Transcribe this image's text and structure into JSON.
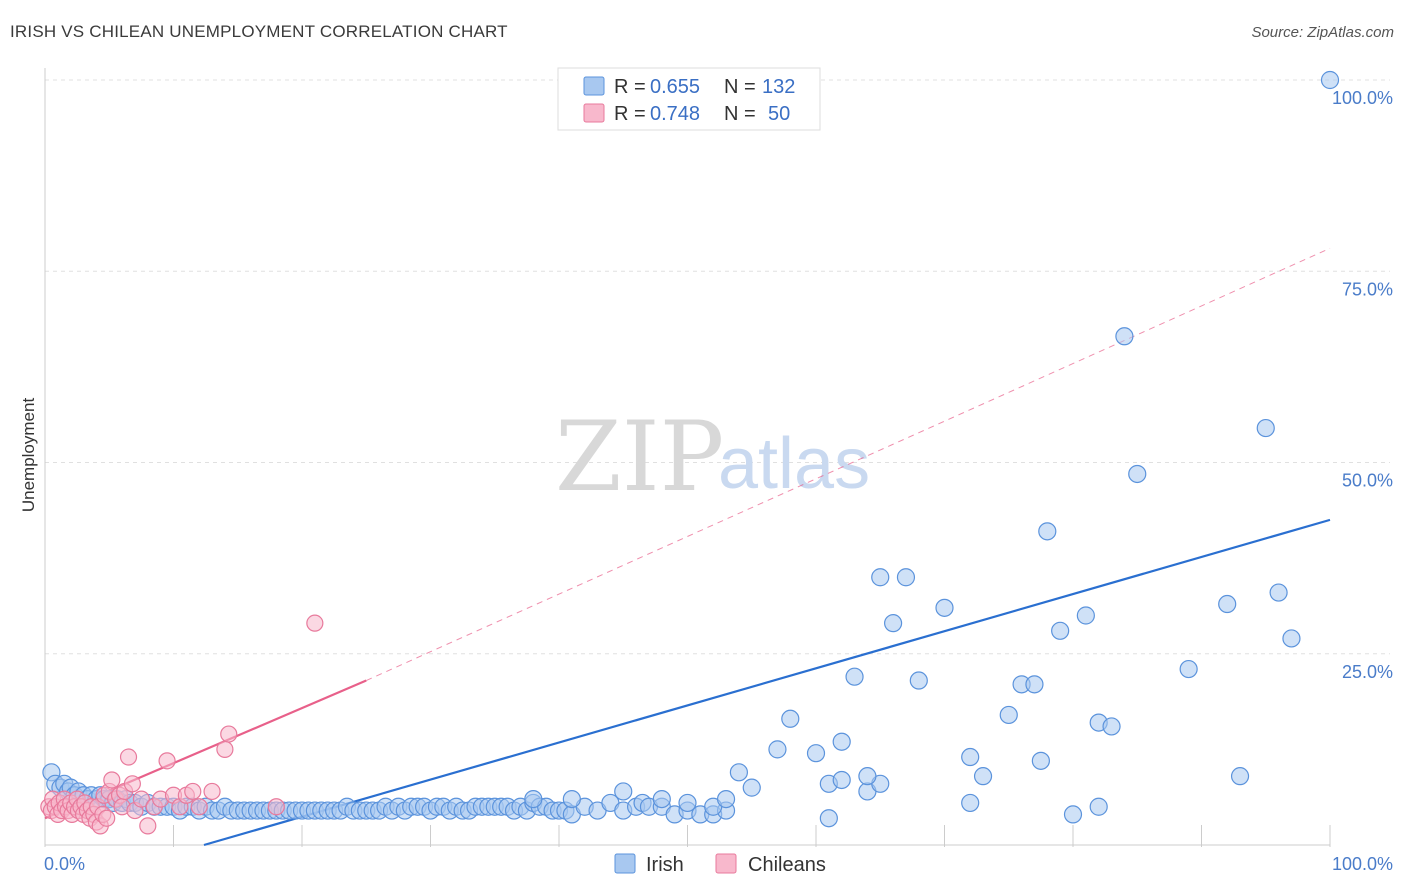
{
  "title": "IRISH VS CHILEAN UNEMPLOYMENT CORRELATION CHART",
  "source": "Source: ZipAtlas.com",
  "watermark": {
    "zip": "ZIP",
    "atlas": "atlas"
  },
  "colors": {
    "irish_fill": "#a8c8f0",
    "irish_stroke": "#5b93dc",
    "irish_line": "#2a6fd0",
    "chilean_fill": "#f8b8cc",
    "chilean_stroke": "#e87a9c",
    "chilean_line": "#e8608a",
    "grid": "#e0e0e0",
    "axis_text": "#4a7cc9"
  },
  "legend": {
    "rows": [
      {
        "r_label": "R =",
        "r_value": "0.655",
        "n_label": "N =",
        "n_value": "132"
      },
      {
        "r_label": "R =",
        "r_value": "0.748",
        "n_label": "N =",
        "n_value": "50"
      }
    ]
  },
  "bottom_legend": {
    "irish": "Irish",
    "chileans": "Chileans"
  },
  "chart_data": {
    "type": "scatter",
    "title": "IRISH VS CHILEAN UNEMPLOYMENT CORRELATION CHART",
    "xlabel": "",
    "ylabel": "Unemployment",
    "xlim": [
      0,
      100
    ],
    "ylim": [
      0,
      100
    ],
    "x_tick_labels": [
      "0.0%",
      "100.0%"
    ],
    "y_tick_labels": [
      "100.0%",
      "75.0%",
      "50.0%",
      "25.0%"
    ],
    "y_ticks": [
      100,
      75,
      50,
      25
    ],
    "series": [
      {
        "name": "Irish",
        "r": 0.655,
        "n": 132,
        "trend": {
          "x": [
            0,
            100
          ],
          "y": [
            -6.0,
            42.5
          ],
          "dashed": false
        },
        "points": [
          [
            0.5,
            9.5
          ],
          [
            0.8,
            8
          ],
          [
            1.2,
            7.5
          ],
          [
            1.5,
            8
          ],
          [
            1.8,
            7
          ],
          [
            2,
            7.5
          ],
          [
            2.3,
            6.5
          ],
          [
            2.6,
            7
          ],
          [
            3,
            6.5
          ],
          [
            3.3,
            6
          ],
          [
            3.6,
            6.5
          ],
          [
            4,
            6
          ],
          [
            4.3,
            6.5
          ],
          [
            4.6,
            6
          ],
          [
            5,
            6
          ],
          [
            5.3,
            5.5
          ],
          [
            5.6,
            6
          ],
          [
            6,
            5.5
          ],
          [
            6.3,
            6
          ],
          [
            6.6,
            5.5
          ],
          [
            7,
            5.5
          ],
          [
            7.5,
            5
          ],
          [
            8,
            5.5
          ],
          [
            8.5,
            5
          ],
          [
            9,
            5
          ],
          [
            9.5,
            5
          ],
          [
            10,
            5
          ],
          [
            10.5,
            4.5
          ],
          [
            11,
            5
          ],
          [
            11.5,
            5
          ],
          [
            12,
            4.5
          ],
          [
            12.5,
            5
          ],
          [
            13,
            4.5
          ],
          [
            13.5,
            4.5
          ],
          [
            14,
            5
          ],
          [
            14.5,
            4.5
          ],
          [
            15,
            4.5
          ],
          [
            15.5,
            4.5
          ],
          [
            16,
            4.5
          ],
          [
            16.5,
            4.5
          ],
          [
            17,
            4.5
          ],
          [
            17.5,
            4.5
          ],
          [
            18,
            4.5
          ],
          [
            18.5,
            4.5
          ],
          [
            19,
            4.5
          ],
          [
            19.5,
            4.5
          ],
          [
            20,
            4.5
          ],
          [
            20.5,
            4.5
          ],
          [
            21,
            4.5
          ],
          [
            21.5,
            4.5
          ],
          [
            22,
            4.5
          ],
          [
            22.5,
            4.5
          ],
          [
            23,
            4.5
          ],
          [
            23.5,
            5
          ],
          [
            24,
            4.5
          ],
          [
            24.5,
            4.5
          ],
          [
            25,
            4.5
          ],
          [
            25.5,
            4.5
          ],
          [
            26,
            4.5
          ],
          [
            26.5,
            5
          ],
          [
            27,
            4.5
          ],
          [
            27.5,
            5
          ],
          [
            28,
            4.5
          ],
          [
            28.5,
            5
          ],
          [
            29,
            5
          ],
          [
            29.5,
            5
          ],
          [
            30,
            4.5
          ],
          [
            30.5,
            5
          ],
          [
            31,
            5
          ],
          [
            31.5,
            4.5
          ],
          [
            32,
            5
          ],
          [
            32.5,
            4.5
          ],
          [
            33,
            4.5
          ],
          [
            33.5,
            5
          ],
          [
            34,
            5
          ],
          [
            34.5,
            5
          ],
          [
            35,
            5
          ],
          [
            35.5,
            5
          ],
          [
            36,
            5
          ],
          [
            36.5,
            4.5
          ],
          [
            37,
            5
          ],
          [
            37.5,
            4.5
          ],
          [
            38,
            5.5
          ],
          [
            38.5,
            5
          ],
          [
            39,
            5
          ],
          [
            39.5,
            4.5
          ],
          [
            40,
            4.5
          ],
          [
            40.5,
            4.5
          ],
          [
            41,
            4
          ],
          [
            42,
            5
          ],
          [
            43,
            4.5
          ],
          [
            44,
            5.5
          ],
          [
            45,
            4.5
          ],
          [
            46,
            5
          ],
          [
            46.5,
            5.5
          ],
          [
            47,
            5
          ],
          [
            48,
            5
          ],
          [
            49,
            4
          ],
          [
            50,
            4.5
          ],
          [
            51,
            4
          ],
          [
            52,
            4
          ],
          [
            53,
            4.5
          ],
          [
            38,
            6
          ],
          [
            41,
            6
          ],
          [
            48,
            6
          ],
          [
            50,
            5.5
          ],
          [
            52,
            5
          ],
          [
            53,
            6
          ],
          [
            45,
            7
          ],
          [
            55,
            7.5
          ],
          [
            54,
            9.5
          ],
          [
            57,
            12.5
          ],
          [
            58,
            16.5
          ],
          [
            60,
            12
          ],
          [
            61,
            8
          ],
          [
            62,
            13.5
          ],
          [
            63,
            22
          ],
          [
            64,
            7
          ],
          [
            65,
            8
          ],
          [
            64,
            9
          ],
          [
            65,
            35
          ],
          [
            66,
            29
          ],
          [
            67,
            35
          ],
          [
            68,
            21.5
          ],
          [
            70,
            31
          ],
          [
            72,
            5.5
          ],
          [
            72,
            11.5
          ],
          [
            73,
            9
          ],
          [
            75,
            17
          ],
          [
            76,
            21
          ],
          [
            77,
            21
          ],
          [
            77.5,
            11
          ],
          [
            78,
            41
          ],
          [
            79,
            28
          ],
          [
            80,
            4
          ],
          [
            81,
            30
          ],
          [
            82,
            5
          ],
          [
            82,
            16
          ],
          [
            83,
            15.5
          ],
          [
            84,
            66.5
          ],
          [
            85,
            48.5
          ],
          [
            89,
            23
          ],
          [
            92,
            31.5
          ],
          [
            93,
            9
          ],
          [
            95,
            54.5
          ],
          [
            96,
            33
          ],
          [
            97,
            27
          ],
          [
            100,
            100
          ],
          [
            61,
            3.5
          ],
          [
            62,
            8.5
          ]
        ]
      },
      {
        "name": "Chileans",
        "r": 0.748,
        "n": 50,
        "trend": {
          "x": [
            0,
            25
          ],
          "y": [
            3.5,
            21.5
          ],
          "dashed": false
        },
        "trend_extension": {
          "x": [
            25,
            100
          ],
          "y": [
            21.5,
            78
          ],
          "dashed": true
        },
        "points": [
          [
            0.3,
            5
          ],
          [
            0.5,
            4.5
          ],
          [
            0.6,
            6
          ],
          [
            0.8,
            5
          ],
          [
            1,
            4
          ],
          [
            1.1,
            5.5
          ],
          [
            1.3,
            4.5
          ],
          [
            1.5,
            6
          ],
          [
            1.6,
            5
          ],
          [
            1.8,
            4.5
          ],
          [
            2,
            5.5
          ],
          [
            2.1,
            4
          ],
          [
            2.3,
            5
          ],
          [
            2.5,
            6
          ],
          [
            2.6,
            4.5
          ],
          [
            2.8,
            5
          ],
          [
            3,
            4
          ],
          [
            3.1,
            5.5
          ],
          [
            3.3,
            4.5
          ],
          [
            3.5,
            3.5
          ],
          [
            3.6,
            5
          ],
          [
            3.8,
            4
          ],
          [
            4,
            3
          ],
          [
            4.1,
            5
          ],
          [
            4.3,
            2.5
          ],
          [
            4.5,
            4
          ],
          [
            4.6,
            6.5
          ],
          [
            4.8,
            3.5
          ],
          [
            5,
            7
          ],
          [
            5.2,
            8.5
          ],
          [
            5.5,
            6
          ],
          [
            5.8,
            6.5
          ],
          [
            6,
            5
          ],
          [
            6.2,
            7
          ],
          [
            6.5,
            11.5
          ],
          [
            6.8,
            8
          ],
          [
            7,
            4.5
          ],
          [
            7.5,
            6
          ],
          [
            8,
            2.5
          ],
          [
            8.5,
            5
          ],
          [
            9,
            6
          ],
          [
            9.5,
            11
          ],
          [
            10,
            6.5
          ],
          [
            10.5,
            5
          ],
          [
            11,
            6.5
          ],
          [
            11.5,
            7
          ],
          [
            12,
            5
          ],
          [
            13,
            7
          ],
          [
            14,
            12.5
          ],
          [
            14.3,
            14.5
          ],
          [
            18,
            5
          ],
          [
            21,
            29
          ]
        ]
      }
    ]
  }
}
